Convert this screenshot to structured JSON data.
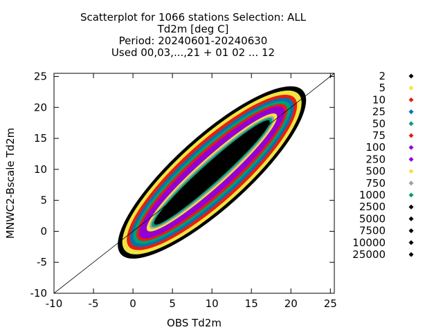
{
  "chart_data": {
    "type": "scatter",
    "title_lines": [
      "Scatterplot for 1066 stations Selection: ALL",
      "Td2m [deg C]",
      "Period: 20240601-20240630",
      "Used 00,03,...,21 + 01 02 ... 12"
    ],
    "xlabel": "OBS Td2m",
    "ylabel": "MNWC2-Bscale Td2m",
    "xlim": [
      -10,
      25.5
    ],
    "ylim": [
      -10,
      25.5
    ],
    "xticks": [
      "-10",
      "-5",
      "0",
      "5",
      "10",
      "15",
      "20",
      "25"
    ],
    "yticks": [
      "-10",
      "-5",
      "0",
      "5",
      "10",
      "15",
      "20",
      "25"
    ],
    "xtick_values": [
      -10,
      -5,
      0,
      5,
      10,
      15,
      20,
      25
    ],
    "ytick_values": [
      -10,
      -5,
      0,
      5,
      10,
      15,
      20,
      25
    ],
    "diagonal": [
      [
        -10,
        -10
      ],
      [
        25.5,
        25.5
      ]
    ],
    "grid": false,
    "legend_position": "right",
    "density_center": [
      10,
      9.5
    ],
    "density_levels": [
      {
        "label": "2",
        "color": "#000000",
        "spread": [
          15.5,
          4.6
        ]
      },
      {
        "label": "5",
        "color": "#f0e442",
        "spread": [
          14.8,
          4.2
        ]
      },
      {
        "label": "10",
        "color": "#e51e10",
        "spread": [
          14.1,
          3.8
        ]
      },
      {
        "label": "25",
        "color": "#0072b2",
        "spread": [
          13.6,
          3.4
        ]
      },
      {
        "label": "50",
        "color": "#009e73",
        "spread": [
          13.1,
          3.1
        ]
      },
      {
        "label": "75",
        "color": "#e51e10",
        "spread": [
          12.6,
          2.8
        ]
      },
      {
        "label": "100",
        "color": "#9400d3",
        "spread": [
          12.2,
          2.5
        ]
      },
      {
        "label": "250",
        "color": "#9400d3",
        "spread": [
          11.6,
          2.2
        ]
      },
      {
        "label": "500",
        "color": "#f0e442",
        "spread": [
          11.0,
          1.8
        ]
      },
      {
        "label": "750",
        "color": "#a0a0a0",
        "spread": [
          10.5,
          1.6
        ]
      },
      {
        "label": "1000",
        "color": "#009e73",
        "spread": [
          10.2,
          1.4
        ]
      },
      {
        "label": "2500",
        "color": "#000000",
        "spread": [
          9.8,
          1.2
        ]
      },
      {
        "label": "5000",
        "color": "#000000",
        "spread": [
          0,
          0
        ]
      },
      {
        "label": "7500",
        "color": "#000000",
        "spread": [
          0,
          0
        ]
      },
      {
        "label": "10000",
        "color": "#000000",
        "spread": [
          0,
          0
        ]
      },
      {
        "label": "25000",
        "color": "#000000",
        "spread": [
          0,
          0
        ]
      }
    ]
  }
}
